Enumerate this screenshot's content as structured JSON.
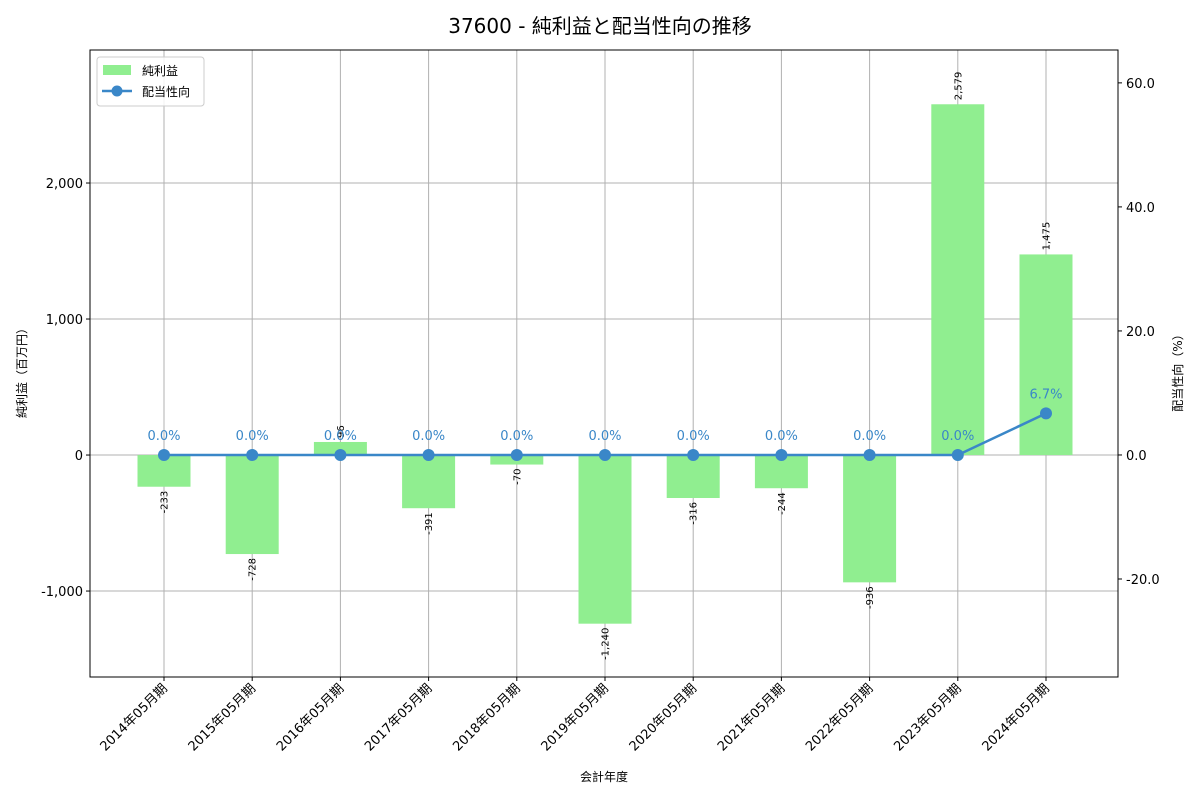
{
  "chart_data": {
    "type": "bar+line",
    "title": "37600 - 純利益と配当性向の推移",
    "xlabel": "会計年度",
    "ylabel": "純利益（百万円）",
    "y2label": "配当性向（%）",
    "categories": [
      "2014年05月期",
      "2015年05月期",
      "2016年05月期",
      "2017年05月期",
      "2018年05月期",
      "2019年05月期",
      "2020年05月期",
      "2021年05月期",
      "2022年05月期",
      "2023年05月期",
      "2024年05月期"
    ],
    "series": [
      {
        "name": "純利益",
        "type": "bar",
        "axis": "left",
        "color": "#90ee90",
        "values": [
          -233,
          -728,
          96,
          -391,
          -70,
          -1240,
          -316,
          -244,
          -936,
          2579,
          1475
        ],
        "labels": [
          "-233",
          "-728",
          "96",
          "-391",
          "-70",
          "-1,240",
          "-316",
          "-244",
          "-936",
          "2,579",
          "1,475"
        ]
      },
      {
        "name": "配当性向",
        "type": "line",
        "axis": "right",
        "color": "#3a87c8",
        "values": [
          0.0,
          0.0,
          0.0,
          0.0,
          0.0,
          0.0,
          0.0,
          0.0,
          0.0,
          0.0,
          6.7
        ],
        "labels": [
          "0.0%",
          "0.0%",
          "0.0%",
          "0.0%",
          "0.0%",
          "0.0%",
          "0.0%",
          "0.0%",
          "0.0%",
          "0.0%",
          "6.7%"
        ]
      }
    ],
    "ylim": [
      -1632,
      2978
    ],
    "y2lim": [
      -35.8,
      65.3
    ],
    "yticks": [
      -1000,
      0,
      1000,
      2000
    ],
    "ytick_labels": [
      "-1,000",
      "0",
      "1,000",
      "2,000"
    ],
    "y2ticks": [
      -20,
      0,
      20,
      40,
      60
    ],
    "y2tick_labels": [
      "-20.0",
      "0.0",
      "20.0",
      "40.0",
      "60.0"
    ],
    "grid": true,
    "legend_position": "upper left"
  }
}
